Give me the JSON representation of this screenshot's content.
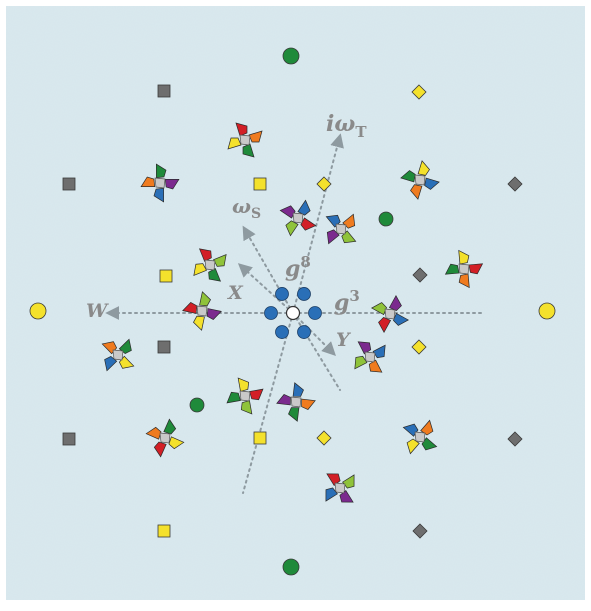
{
  "labels": {
    "omega_t": {
      "base": "iω",
      "sub": "T"
    },
    "omega_s": {
      "base": "ω",
      "sub": "S"
    },
    "g8": {
      "base": "g",
      "sup": "8"
    },
    "g3": {
      "base": "g",
      "sup": "3"
    },
    "x": "X",
    "y": "Y",
    "w": "W"
  },
  "colors": {
    "background": "#d6e6ec",
    "axis": "#8e9aa0",
    "yellow": "#f4e12c",
    "green": "#1f8a3a",
    "gray": "#6e6e6e",
    "blue": "#2a6fb7",
    "red": "#d21f26",
    "orange": "#ef7b1f",
    "lime": "#8fc33a",
    "purple": "#7b2a8e",
    "white": "#ffffff"
  },
  "legend": []
}
